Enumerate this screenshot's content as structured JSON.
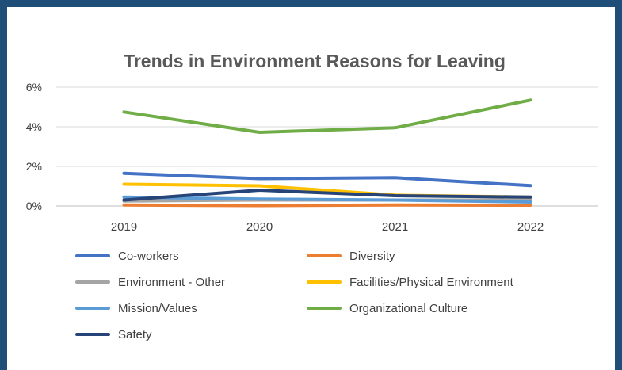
{
  "chart_data": {
    "type": "line",
    "title": "Trends in Environment Reasons for Leaving",
    "xlabel": "",
    "ylabel": "",
    "categories": [
      "2019",
      "2020",
      "2021",
      "2022"
    ],
    "ylim": [
      0,
      6
    ],
    "yticks": [
      0,
      2,
      4,
      6
    ],
    "ytick_labels": [
      "0%",
      "2%",
      "4%",
      "6%"
    ],
    "grid": true,
    "legend_position": "bottom",
    "series": [
      {
        "name": "Co-workers",
        "color": "#4472c4",
        "values": [
          1.65,
          1.38,
          1.43,
          1.03
        ]
      },
      {
        "name": "Diversity",
        "color": "#ed7d31",
        "values": [
          0.05,
          0.02,
          0.05,
          0.04
        ]
      },
      {
        "name": "Environment - Other",
        "color": "#a5a5a5",
        "values": [
          0.25,
          0.3,
          0.3,
          0.3
        ]
      },
      {
        "name": "Facilities/Physical Environment",
        "color": "#ffc000",
        "values": [
          1.1,
          1.02,
          0.55,
          0.45
        ]
      },
      {
        "name": "Mission/Values",
        "color": "#5b9bd5",
        "values": [
          0.45,
          0.35,
          0.3,
          0.2
        ]
      },
      {
        "name": "Organizational Culture",
        "color": "#70ad47",
        "values": [
          4.75,
          3.72,
          3.95,
          5.35
        ]
      },
      {
        "name": "Safety",
        "color": "#264478",
        "values": [
          0.3,
          0.8,
          0.52,
          0.45
        ]
      }
    ]
  }
}
